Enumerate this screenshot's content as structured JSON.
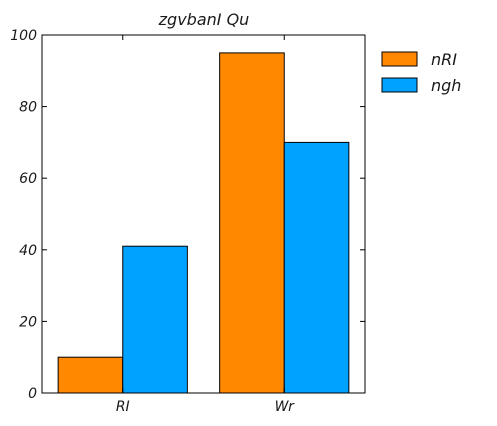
{
  "chart_data": {
    "type": "bar",
    "title": "zgvbanI  Qu",
    "xlabel": "",
    "ylabel": "",
    "categories": [
      "RI",
      "Wr"
    ],
    "series": [
      {
        "name": "nRI",
        "values": [
          10,
          95
        ],
        "color": "#ff8800"
      },
      {
        "name": "ngh",
        "values": [
          41,
          70
        ],
        "color": "#00a2ff"
      }
    ],
    "ylim": [
      0,
      100
    ],
    "yticks": [
      0,
      20,
      40,
      60,
      80,
      100
    ],
    "grid": false,
    "legend_position": "outside-right-top"
  }
}
